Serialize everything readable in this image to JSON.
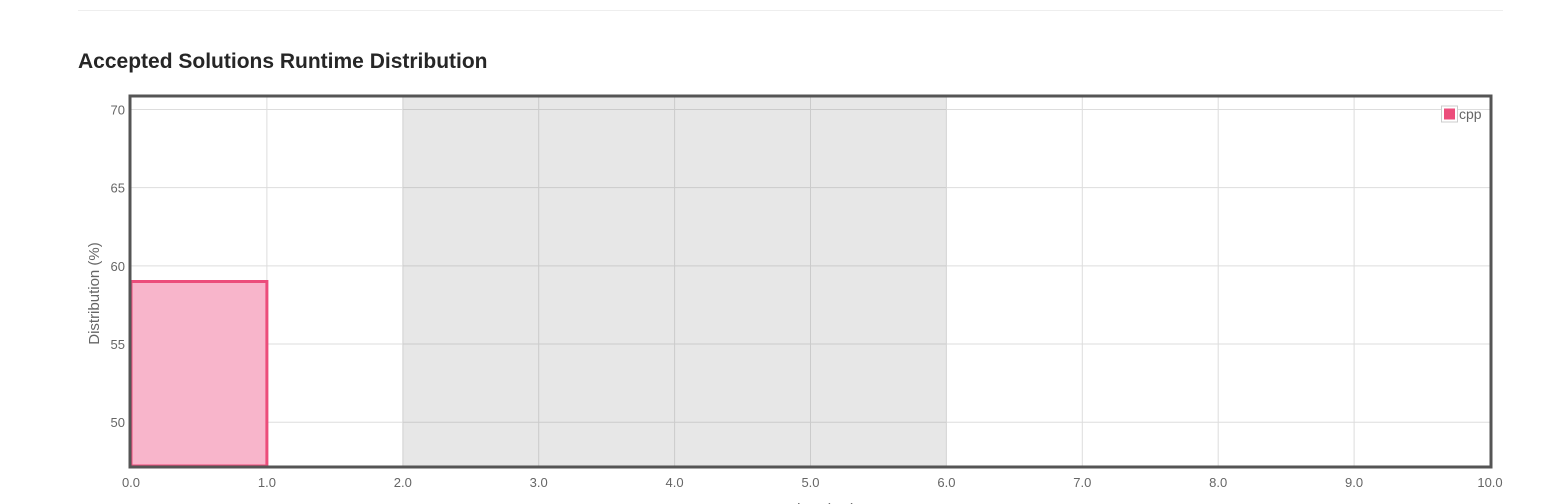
{
  "section": {
    "title": "Accepted Solutions Runtime Distribution"
  },
  "chart_data": {
    "type": "bar",
    "xlabel": "Runtime (ms)",
    "ylabel": "Distribution (%)",
    "xlim": [
      0,
      10
    ],
    "ylim": [
      47.2,
      70.8
    ],
    "x_ticks": [
      "0.0",
      "1.0",
      "2.0",
      "3.0",
      "4.0",
      "5.0",
      "6.0",
      "7.0",
      "8.0",
      "9.0",
      "10.0"
    ],
    "y_ticks": [
      50,
      55,
      60,
      65,
      70
    ],
    "grid": true,
    "highlight_range": [
      2,
      6
    ],
    "legend_position": "top-right",
    "series": [
      {
        "name": "cpp",
        "color": "#ec4d7b",
        "fill": "#f8b5cb",
        "bins": [
          {
            "x0": 0,
            "x1": 1,
            "value": 59
          }
        ]
      }
    ]
  }
}
